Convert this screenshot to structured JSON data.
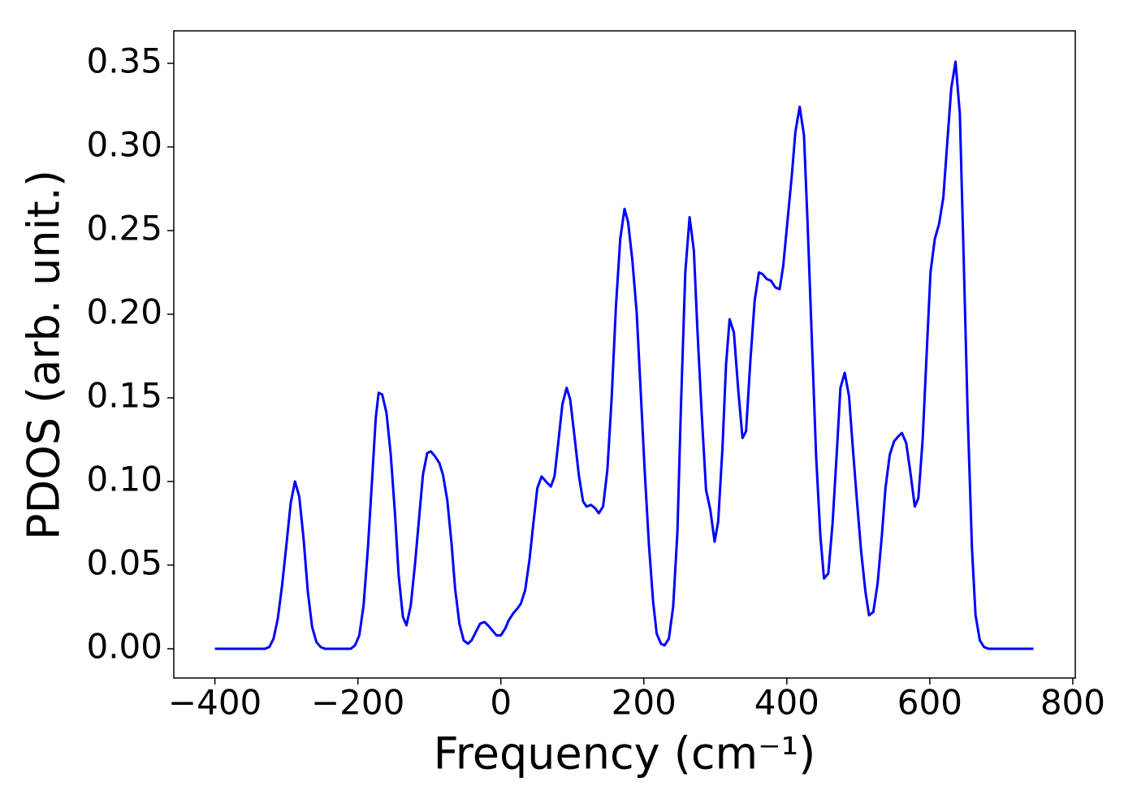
{
  "chart_data": {
    "type": "line",
    "xlabel": "Frequency (cm⁻¹)",
    "ylabel": "PDOS (arb. unit.)",
    "xlim": [
      -457.5,
      803.5
    ],
    "ylim": [
      -0.0175,
      0.3694
    ],
    "xticks": [
      {
        "value": -400,
        "label": "−400"
      },
      {
        "value": -200,
        "label": "−200"
      },
      0,
      200,
      400,
      600,
      800
    ],
    "yticks": [
      {
        "value": 0,
        "label": "0.00"
      },
      {
        "value": 0.05,
        "label": "0.05"
      },
      {
        "value": 0.1,
        "label": "0.10"
      },
      {
        "value": 0.15,
        "label": "0.15"
      },
      {
        "value": 0.2,
        "label": "0.20"
      },
      {
        "value": 0.25,
        "label": "0.25"
      },
      {
        "value": 0.3,
        "label": "0.30"
      },
      {
        "value": 0.35,
        "label": "0.35"
      }
    ],
    "grid": false,
    "x": [
      -400,
      -330,
      -324,
      -318,
      -312,
      -306,
      -300,
      -294,
      -288,
      -282,
      -276,
      -270,
      -264,
      -258,
      -252,
      -246,
      -210,
      -204,
      -198,
      -192,
      -186,
      -180,
      -175,
      -171,
      -166,
      -160,
      -154,
      -148,
      -143,
      -137,
      -132,
      -126,
      -120,
      -114,
      -109,
      -103,
      -98,
      -92,
      -86,
      -81,
      -75,
      -69,
      -64,
      -58,
      -52,
      -46,
      -41,
      -35,
      -29,
      -23,
      -18,
      -12,
      -6,
      0,
      6,
      11,
      17,
      23,
      28,
      34,
      40,
      46,
      51,
      57,
      63,
      70,
      75,
      80,
      86,
      92,
      97,
      103,
      109,
      115,
      120,
      126,
      132,
      137,
      143,
      149,
      155,
      161,
      167,
      173,
      178,
      184,
      190,
      195,
      201,
      207,
      213,
      218,
      224,
      229,
      235,
      241,
      247,
      252,
      258,
      264,
      270,
      275,
      281,
      287,
      293,
      299,
      304,
      310,
      315,
      320,
      326,
      332,
      338,
      343,
      349,
      355,
      361,
      366,
      372,
      378,
      384,
      390,
      395,
      401,
      407,
      412,
      418,
      424,
      429,
      435,
      441,
      447,
      452,
      458,
      464,
      470,
      475,
      481,
      487,
      492,
      498,
      504,
      510,
      515,
      521,
      527,
      533,
      538,
      544,
      550,
      556,
      561,
      567,
      573,
      579,
      584,
      590,
      596,
      601,
      607,
      613,
      619,
      624,
      630,
      636,
      642,
      647,
      653,
      659,
      664,
      670,
      676,
      682,
      745
    ],
    "series": [
      {
        "name": "PDOS",
        "color": "#0000ff",
        "values": [
          0,
          0,
          0.001,
          0.006,
          0.018,
          0.038,
          0.062,
          0.087,
          0.1,
          0.091,
          0.066,
          0.034,
          0.013,
          0.004,
          0.001,
          0,
          0,
          0.002,
          0.008,
          0.026,
          0.06,
          0.102,
          0.138,
          0.153,
          0.152,
          0.141,
          0.116,
          0.08,
          0.044,
          0.019,
          0.014,
          0.026,
          0.051,
          0.08,
          0.104,
          0.117,
          0.118,
          0.115,
          0.111,
          0.104,
          0.089,
          0.063,
          0.036,
          0.015,
          0.005,
          0.003,
          0.005,
          0.01,
          0.015,
          0.016,
          0.014,
          0.011,
          0.008,
          0.008,
          0.012,
          0.017,
          0.021,
          0.024,
          0.027,
          0.035,
          0.053,
          0.077,
          0.096,
          0.103,
          0.1,
          0.097,
          0.103,
          0.122,
          0.146,
          0.156,
          0.149,
          0.127,
          0.104,
          0.088,
          0.085,
          0.086,
          0.084,
          0.081,
          0.085,
          0.107,
          0.15,
          0.205,
          0.245,
          0.263,
          0.255,
          0.232,
          0.201,
          0.159,
          0.108,
          0.063,
          0.028,
          0.009,
          0.003,
          0.002,
          0.006,
          0.025,
          0.07,
          0.146,
          0.225,
          0.258,
          0.238,
          0.19,
          0.14,
          0.095,
          0.083,
          0.064,
          0.076,
          0.12,
          0.17,
          0.197,
          0.189,
          0.155,
          0.126,
          0.13,
          0.172,
          0.208,
          0.225,
          0.224,
          0.221,
          0.22,
          0.216,
          0.215,
          0.229,
          0.256,
          0.283,
          0.309,
          0.324,
          0.307,
          0.255,
          0.185,
          0.115,
          0.067,
          0.042,
          0.045,
          0.075,
          0.118,
          0.156,
          0.165,
          0.151,
          0.122,
          0.089,
          0.058,
          0.034,
          0.02,
          0.022,
          0.039,
          0.068,
          0.096,
          0.116,
          0.124,
          0.127,
          0.129,
          0.123,
          0.105,
          0.085,
          0.09,
          0.125,
          0.18,
          0.225,
          0.245,
          0.254,
          0.27,
          0.3,
          0.335,
          0.351,
          0.32,
          0.24,
          0.14,
          0.06,
          0.02,
          0.005,
          0.001,
          0,
          0
        ]
      }
    ]
  }
}
